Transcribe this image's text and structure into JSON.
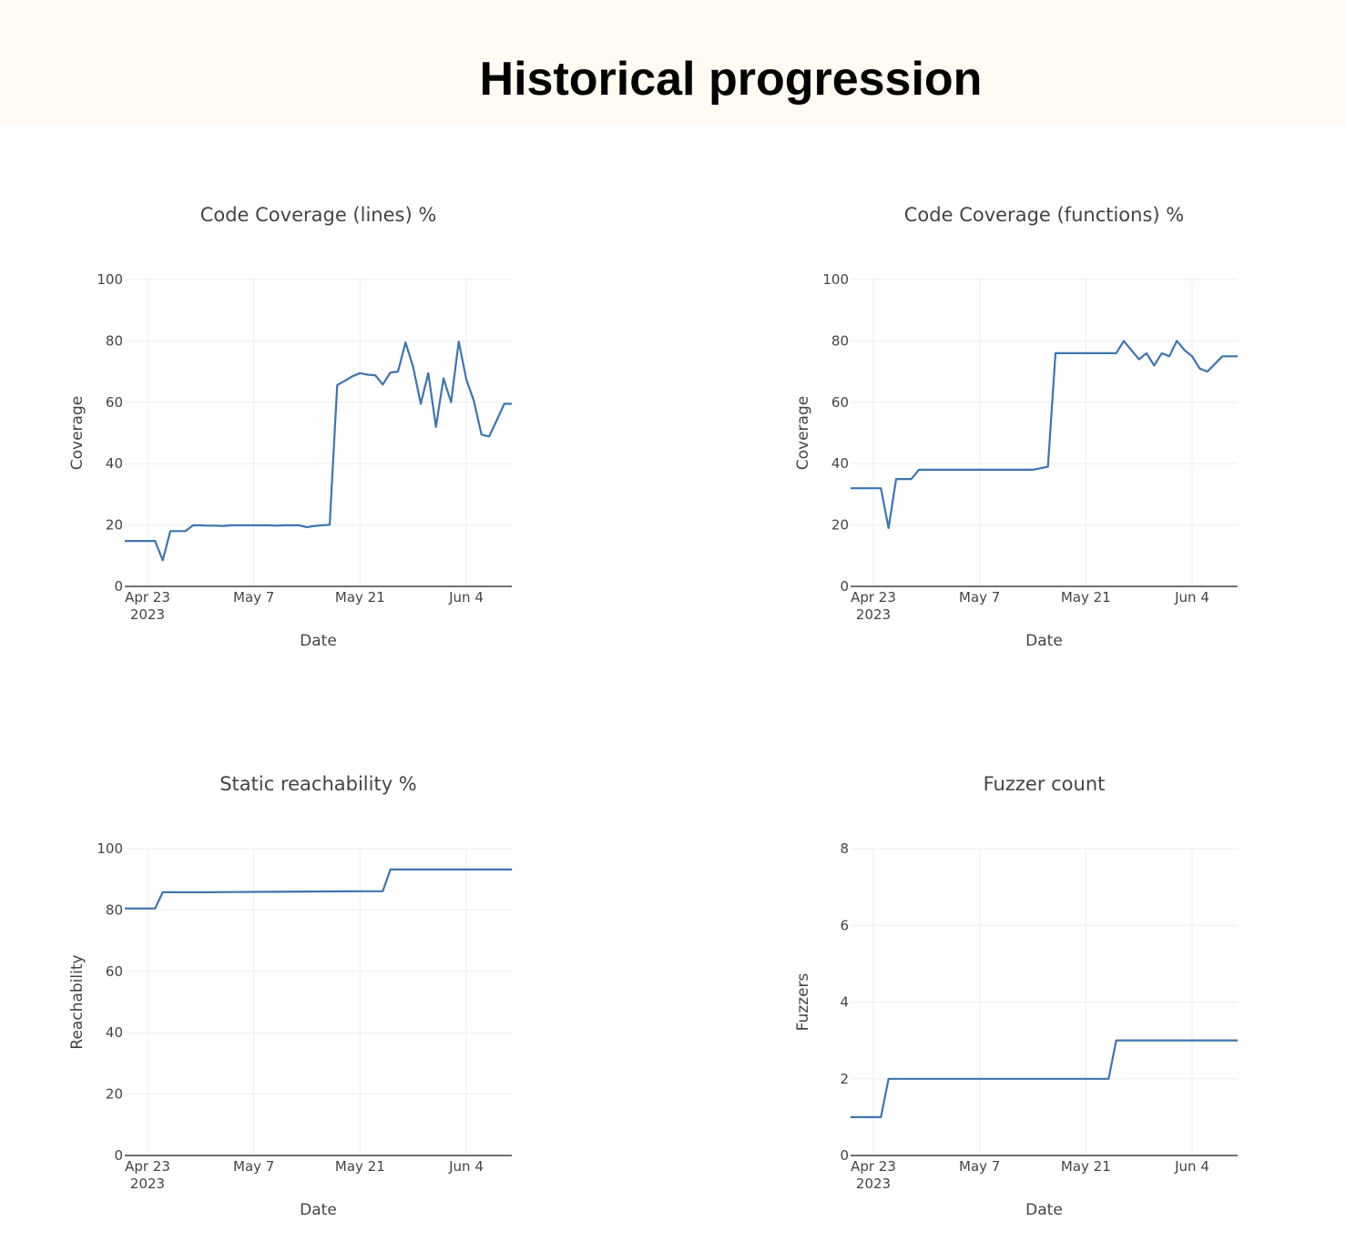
{
  "page": {
    "title": "Historical progression"
  },
  "theme": {
    "line_color": "#3d75b0",
    "grid_color": "#eeeeee",
    "axis_color": "#444444",
    "header_bg": "#fffbf2"
  },
  "chart_data": [
    {
      "type": "line",
      "title": "Code Coverage (lines) %",
      "xlabel": "Date",
      "ylabel": "Coverage",
      "x_ticks": [
        [
          "2023-04-23",
          "Apr 23",
          "2023"
        ],
        [
          "2023-05-07",
          "May 7",
          ""
        ],
        [
          "2023-05-21",
          "May 21",
          ""
        ],
        [
          "2023-06-04",
          "Jun 4",
          ""
        ]
      ],
      "xlim": [
        "2023-04-20",
        "2023-06-10"
      ],
      "ylim": [
        0,
        100
      ],
      "y_ticks": [
        0,
        20,
        40,
        60,
        80,
        100
      ],
      "grid": true,
      "series": [
        {
          "x": [
            "2023-04-20",
            "2023-04-21",
            "2023-04-22",
            "2023-04-23",
            "2023-04-24",
            "2023-04-25",
            "2023-04-26",
            "2023-04-27",
            "2023-04-28",
            "2023-04-29",
            "2023-04-30",
            "2023-05-01",
            "2023-05-02",
            "2023-05-03",
            "2023-05-04",
            "2023-05-05",
            "2023-05-06",
            "2023-05-07",
            "2023-05-08",
            "2023-05-09",
            "2023-05-10",
            "2023-05-11",
            "2023-05-12",
            "2023-05-13",
            "2023-05-14",
            "2023-05-15",
            "2023-05-16",
            "2023-05-17",
            "2023-05-18",
            "2023-05-19",
            "2023-05-20",
            "2023-05-21",
            "2023-05-22",
            "2023-05-23",
            "2023-05-24",
            "2023-05-25",
            "2023-05-26",
            "2023-05-27",
            "2023-05-28",
            "2023-05-29",
            "2023-05-30",
            "2023-05-31",
            "2023-06-01",
            "2023-06-02",
            "2023-06-03",
            "2023-06-04",
            "2023-06-05",
            "2023-06-06",
            "2023-06-07",
            "2023-06-08",
            "2023-06-09",
            "2023-06-10"
          ],
          "y": [
            14.8,
            14.8,
            14.8,
            14.8,
            14.8,
            8.5,
            18,
            18,
            18,
            19.9,
            19.9,
            19.8,
            19.8,
            19.7,
            19.9,
            19.9,
            19.9,
            19.9,
            19.9,
            19.9,
            19.8,
            19.9,
            19.9,
            19.9,
            19.3,
            19.7,
            19.9,
            20.1,
            65.6,
            67,
            68.5,
            69.5,
            69,
            68.8,
            65.8,
            69.7,
            70,
            79.5,
            71.5,
            59.5,
            69.5,
            52,
            67.8,
            60,
            79.8,
            67.5,
            60.5,
            49.5,
            48.8,
            54,
            59.5,
            59.5
          ]
        }
      ]
    },
    {
      "type": "line",
      "title": "Code Coverage (functions) %",
      "xlabel": "Date",
      "ylabel": "Coverage",
      "x_ticks": [
        [
          "2023-04-23",
          "Apr 23",
          "2023"
        ],
        [
          "2023-05-07",
          "May 7",
          ""
        ],
        [
          "2023-05-21",
          "May 21",
          ""
        ],
        [
          "2023-06-04",
          "Jun 4",
          ""
        ]
      ],
      "xlim": [
        "2023-04-20",
        "2023-06-10"
      ],
      "ylim": [
        0,
        100
      ],
      "y_ticks": [
        0,
        20,
        40,
        60,
        80,
        100
      ],
      "grid": true,
      "series": [
        {
          "x": [
            "2023-04-20",
            "2023-04-21",
            "2023-04-22",
            "2023-04-23",
            "2023-04-24",
            "2023-04-25",
            "2023-04-26",
            "2023-04-27",
            "2023-04-28",
            "2023-04-29",
            "2023-04-30",
            "2023-05-01",
            "2023-05-02",
            "2023-05-03",
            "2023-05-04",
            "2023-05-05",
            "2023-05-06",
            "2023-05-07",
            "2023-05-08",
            "2023-05-09",
            "2023-05-10",
            "2023-05-11",
            "2023-05-12",
            "2023-05-13",
            "2023-05-14",
            "2023-05-15",
            "2023-05-16",
            "2023-05-17",
            "2023-05-18",
            "2023-05-19",
            "2023-05-20",
            "2023-05-21",
            "2023-05-22",
            "2023-05-23",
            "2023-05-24",
            "2023-05-25",
            "2023-05-26",
            "2023-05-27",
            "2023-05-28",
            "2023-05-29",
            "2023-05-30",
            "2023-05-31",
            "2023-06-01",
            "2023-06-02",
            "2023-06-03",
            "2023-06-04",
            "2023-06-05",
            "2023-06-06",
            "2023-06-07",
            "2023-06-08",
            "2023-06-09",
            "2023-06-10"
          ],
          "y": [
            32,
            32,
            32,
            32,
            32,
            19,
            35,
            35,
            35,
            38,
            38,
            38,
            38,
            38,
            38,
            38,
            38,
            38,
            38,
            38,
            38,
            38,
            38,
            38,
            38,
            38.5,
            39,
            76,
            76,
            76,
            76,
            76,
            76,
            76,
            76,
            76,
            80,
            77,
            74,
            76,
            72,
            76,
            75,
            80,
            77,
            75,
            71,
            70,
            72.5,
            75,
            75,
            75
          ]
        }
      ]
    },
    {
      "type": "line",
      "title": "Static reachability %",
      "xlabel": "Date",
      "ylabel": "Reachability",
      "x_ticks": [
        [
          "2023-04-23",
          "Apr 23",
          "2023"
        ],
        [
          "2023-05-07",
          "May 7",
          ""
        ],
        [
          "2023-05-21",
          "May 21",
          ""
        ],
        [
          "2023-06-04",
          "Jun 4",
          ""
        ]
      ],
      "xlim": [
        "2023-04-20",
        "2023-06-10"
      ],
      "ylim": [
        0,
        100
      ],
      "y_ticks": [
        0,
        20,
        40,
        60,
        80,
        100
      ],
      "grid": true,
      "series": [
        {
          "x": [
            "2023-04-20",
            "2023-04-24",
            "2023-04-25",
            "2023-05-01",
            "2023-05-07",
            "2023-05-21",
            "2023-05-24",
            "2023-05-25",
            "2023-06-04",
            "2023-06-10"
          ],
          "y": [
            80.5,
            80.5,
            85.8,
            85.8,
            85.9,
            86.1,
            86.1,
            93.2,
            93.2,
            93.2
          ]
        }
      ]
    },
    {
      "type": "line",
      "title": "Fuzzer count",
      "xlabel": "Date",
      "ylabel": "Fuzzers",
      "x_ticks": [
        [
          "2023-04-23",
          "Apr 23",
          "2023"
        ],
        [
          "2023-05-07",
          "May 7",
          ""
        ],
        [
          "2023-05-21",
          "May 21",
          ""
        ],
        [
          "2023-06-04",
          "Jun 4",
          ""
        ]
      ],
      "xlim": [
        "2023-04-20",
        "2023-06-10"
      ],
      "ylim": [
        0,
        8
      ],
      "y_ticks": [
        0,
        2,
        4,
        6,
        8
      ],
      "grid": true,
      "series": [
        {
          "x": [
            "2023-04-20",
            "2023-04-24",
            "2023-04-25",
            "2023-05-24",
            "2023-05-25",
            "2023-06-10"
          ],
          "y": [
            1,
            1,
            2,
            2,
            3,
            3
          ]
        }
      ]
    }
  ]
}
